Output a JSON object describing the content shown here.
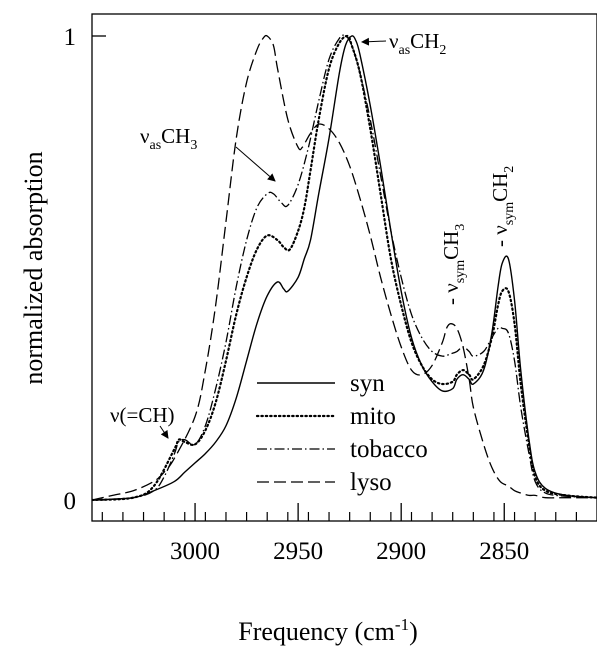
{
  "chart_data": {
    "type": "line",
    "xlabel": "Frequency (cm",
    "xlabel_sup": "-1",
    "xlabel_close": ")",
    "ylabel": "normalized absorption",
    "xlim": [
      3050,
      2805
    ],
    "ylim": [
      0,
      1
    ],
    "x_reversed": true,
    "x_ticks": [
      {
        "value": 3000,
        "label": "3000"
      },
      {
        "value": 2950,
        "label": "2950"
      },
      {
        "value": 2900,
        "label": "2900"
      },
      {
        "value": 2850,
        "label": "2850"
      }
    ],
    "y_ticks": [
      {
        "value": 0,
        "label": "0"
      },
      {
        "value": 1,
        "label": "1"
      }
    ],
    "legend": {
      "placement": "bottom-center"
    },
    "annotations": [
      {
        "base": "ν",
        "sub": "as",
        "rest": "CH",
        "sub2": "2",
        "lead": ""
      },
      {
        "base": "ν",
        "sub": "as",
        "rest": "CH",
        "sub2": "3",
        "lead": ""
      },
      {
        "base": "ν",
        "sub": "sym",
        "rest": "CH",
        "sub2": "3",
        "lead": "- "
      },
      {
        "base": "ν",
        "sub": "sym",
        "rest": "CH",
        "sub2": "2",
        "lead": "- "
      },
      {
        "base": "ν(=CH)",
        "sub": "",
        "rest": "",
        "sub2": "",
        "lead": ""
      }
    ],
    "series": [
      {
        "name": "syn",
        "dash": "solid",
        "x": [
          3050,
          3030,
          3020,
          3010,
          3005,
          3000,
          2995,
          2990,
          2985,
          2980,
          2975,
          2970,
          2965,
          2960,
          2957,
          2955,
          2950,
          2947,
          2944,
          2940,
          2935,
          2930,
          2927,
          2924,
          2922,
          2920,
          2915,
          2910,
          2905,
          2900,
          2895,
          2890,
          2885,
          2880,
          2875,
          2873,
          2870,
          2867,
          2865,
          2860,
          2856,
          2853,
          2851,
          2848,
          2845,
          2842,
          2838,
          2835,
          2830,
          2820,
          2805
        ],
        "y": [
          0.0,
          0.005,
          0.02,
          0.04,
          0.06,
          0.08,
          0.1,
          0.125,
          0.16,
          0.22,
          0.3,
          0.38,
          0.44,
          0.47,
          0.455,
          0.45,
          0.48,
          0.52,
          0.56,
          0.66,
          0.78,
          0.92,
          0.98,
          1.0,
          0.99,
          0.96,
          0.85,
          0.72,
          0.58,
          0.45,
          0.35,
          0.29,
          0.255,
          0.235,
          0.24,
          0.26,
          0.27,
          0.26,
          0.25,
          0.28,
          0.36,
          0.46,
          0.51,
          0.52,
          0.43,
          0.28,
          0.13,
          0.06,
          0.025,
          0.01,
          0.005
        ]
      },
      {
        "name": "mito",
        "dash": "dotted",
        "x": [
          3050,
          3030,
          3020,
          3010,
          3008,
          3005,
          3000,
          2995,
          2990,
          2985,
          2980,
          2975,
          2970,
          2965,
          2960,
          2957,
          2954,
          2950,
          2947,
          2944,
          2940,
          2935,
          2930,
          2926,
          2924,
          2920,
          2915,
          2910,
          2905,
          2900,
          2895,
          2890,
          2885,
          2880,
          2875,
          2873,
          2870,
          2867,
          2865,
          2860,
          2856,
          2853,
          2851,
          2848,
          2845,
          2842,
          2838,
          2835,
          2830,
          2820,
          2805
        ],
        "y": [
          0.0,
          0.005,
          0.03,
          0.11,
          0.13,
          0.125,
          0.12,
          0.15,
          0.21,
          0.3,
          0.4,
          0.48,
          0.54,
          0.57,
          0.56,
          0.545,
          0.54,
          0.58,
          0.63,
          0.71,
          0.82,
          0.93,
          0.985,
          1.0,
          0.98,
          0.92,
          0.8,
          0.66,
          0.52,
          0.42,
          0.34,
          0.29,
          0.26,
          0.25,
          0.255,
          0.27,
          0.28,
          0.27,
          0.26,
          0.29,
          0.35,
          0.42,
          0.45,
          0.45,
          0.38,
          0.25,
          0.12,
          0.05,
          0.02,
          0.01,
          0.005
        ]
      },
      {
        "name": "tobacco",
        "dash": "dashdot",
        "x": [
          3050,
          3030,
          3020,
          3015,
          3010,
          3008,
          3005,
          3000,
          2995,
          2990,
          2985,
          2980,
          2975,
          2970,
          2965,
          2962,
          2958,
          2955,
          2950,
          2945,
          2940,
          2935,
          2930,
          2927,
          2924,
          2920,
          2915,
          2910,
          2905,
          2900,
          2895,
          2890,
          2885,
          2880,
          2876,
          2873,
          2870,
          2867,
          2865,
          2860,
          2856,
          2853,
          2851,
          2848,
          2845,
          2842,
          2838,
          2835,
          2830,
          2820,
          2805
        ],
        "y": [
          0.0,
          0.005,
          0.02,
          0.05,
          0.1,
          0.125,
          0.13,
          0.12,
          0.16,
          0.24,
          0.34,
          0.46,
          0.56,
          0.63,
          0.66,
          0.66,
          0.64,
          0.635,
          0.68,
          0.76,
          0.86,
          0.95,
          0.995,
          1.0,
          0.98,
          0.92,
          0.82,
          0.7,
          0.58,
          0.48,
          0.4,
          0.35,
          0.32,
          0.31,
          0.315,
          0.32,
          0.33,
          0.32,
          0.31,
          0.32,
          0.35,
          0.37,
          0.37,
          0.36,
          0.3,
          0.2,
          0.1,
          0.04,
          0.015,
          0.008,
          0.005
        ]
      },
      {
        "name": "lyso",
        "dash": "dashed",
        "x": [
          3050,
          3040,
          3030,
          3020,
          3015,
          3010,
          3000,
          2995,
          2990,
          2985,
          2980,
          2975,
          2970,
          2967,
          2965,
          2962,
          2960,
          2955,
          2950,
          2948,
          2946,
          2944,
          2940,
          2935,
          2930,
          2925,
          2920,
          2915,
          2910,
          2905,
          2900,
          2895,
          2890,
          2885,
          2880,
          2878,
          2876,
          2873,
          2870,
          2867,
          2865,
          2860,
          2856,
          2852,
          2848,
          2845,
          2842,
          2838,
          2835,
          2830,
          2820,
          2805
        ],
        "y": [
          0.0,
          0.01,
          0.02,
          0.04,
          0.06,
          0.09,
          0.18,
          0.28,
          0.42,
          0.6,
          0.78,
          0.9,
          0.97,
          0.995,
          1.0,
          0.98,
          0.93,
          0.82,
          0.76,
          0.76,
          0.775,
          0.79,
          0.81,
          0.8,
          0.77,
          0.72,
          0.65,
          0.57,
          0.48,
          0.4,
          0.33,
          0.28,
          0.27,
          0.29,
          0.34,
          0.37,
          0.38,
          0.37,
          0.33,
          0.26,
          0.2,
          0.12,
          0.07,
          0.04,
          0.03,
          0.02,
          0.015,
          0.01,
          0.01,
          0.005,
          0.005,
          0.005
        ]
      }
    ]
  }
}
